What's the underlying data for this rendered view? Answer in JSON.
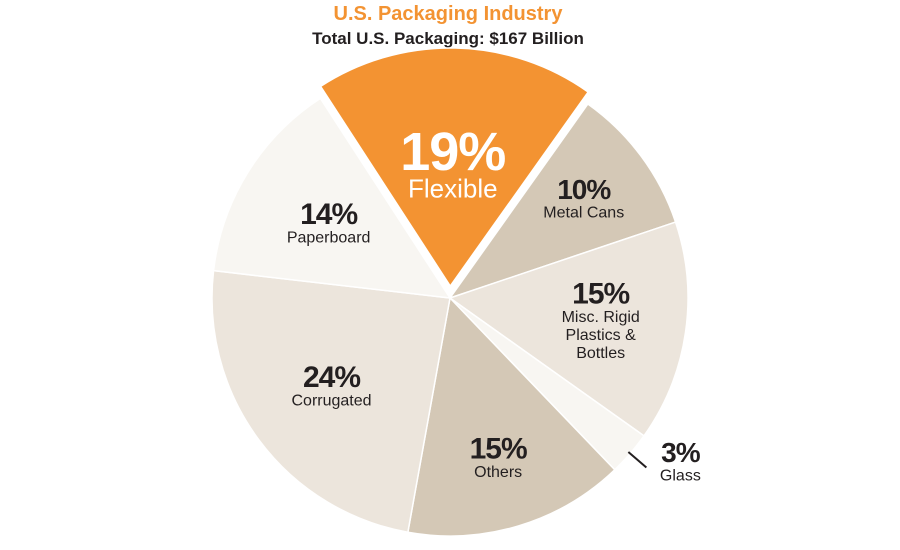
{
  "chart_data": {
    "type": "pie",
    "title": "U.S. Packaging Industry",
    "subtitle": "Total U.S. Packaging: $167 Billion",
    "slices": [
      {
        "label": "Flexible",
        "value": 19,
        "display": "19%",
        "color": "#f39332",
        "text_color": "#ffffff"
      },
      {
        "label": "Metal Cans",
        "value": 10,
        "display": "10%",
        "color": "#d4c8b6",
        "text_color": "#231f20"
      },
      {
        "label": "Misc. Rigid Plastics & Bottles",
        "value": 15,
        "display": "15%",
        "color": "#ece5dc",
        "text_color": "#231f20"
      },
      {
        "label": "Glass",
        "value": 3,
        "display": "3%",
        "color": "#f8f6f2",
        "text_color": "#231f20"
      },
      {
        "label": "Others",
        "value": 15,
        "display": "15%",
        "color": "#d4c8b6",
        "text_color": "#231f20"
      },
      {
        "label": "Corrugated",
        "value": 24,
        "display": "24%",
        "color": "#ece5dc",
        "text_color": "#231f20"
      },
      {
        "label": "Paperboard",
        "value": 14,
        "display": "14%",
        "color": "#f8f6f2",
        "text_color": "#231f20"
      }
    ],
    "title_color": "#f39332",
    "text_color": "#231f20",
    "legend": "none"
  }
}
